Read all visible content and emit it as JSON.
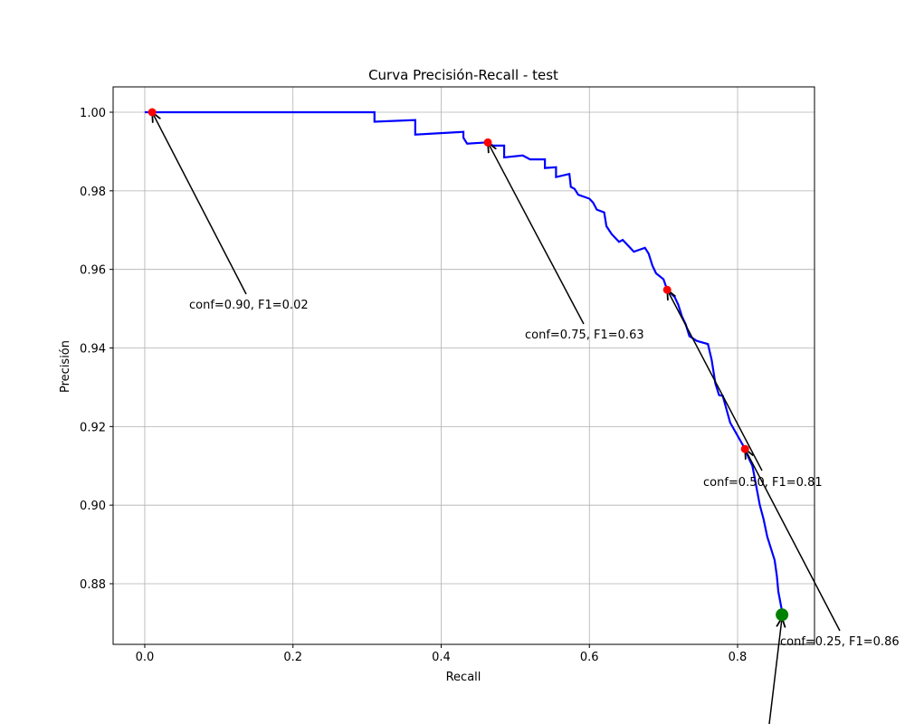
{
  "chart_data": {
    "type": "line",
    "title": "Curva Precisión-Recall - test",
    "x_label": "Recall",
    "y_label": "Precisión",
    "xlim": [
      -0.0427,
      0.9038
    ],
    "ylim": [
      0.86457,
      1.00645
    ],
    "xticks": [
      {
        "value": 0,
        "label": "0.0"
      },
      {
        "value": 0.2,
        "label": "0.2"
      },
      {
        "value": 0.4,
        "label": "0.4"
      },
      {
        "value": 0.6,
        "label": "0.6"
      },
      {
        "value": 0.8,
        "label": "0.8"
      }
    ],
    "yticks": [
      0.88,
      {
        "value": 0.9,
        "label": "0.90"
      },
      0.92,
      0.94,
      0.96,
      0.98,
      {
        "value": 1.0,
        "label": "1.00"
      }
    ],
    "grid": true,
    "line": {
      "color": "#0000ff",
      "x": [
        0,
        0.31,
        0.31,
        0.365,
        0.365,
        0.43,
        0.43,
        0.435,
        0.46,
        0.47,
        0.485,
        0.485,
        0.51,
        0.52,
        0.54,
        0.54,
        0.555,
        0.555,
        0.573,
        0.575,
        0.58,
        0.585,
        0.6,
        0.605,
        0.61,
        0.62,
        0.623,
        0.63,
        0.64,
        0.645,
        0.655,
        0.66,
        0.675,
        0.68,
        0.685,
        0.69,
        0.7,
        0.705,
        0.715,
        0.72,
        0.725,
        0.73,
        0.735,
        0.745,
        0.76,
        0.765,
        0.77,
        0.775,
        0.78,
        0.79,
        0.805,
        0.81,
        0.815,
        0.82,
        0.825,
        0.83,
        0.835,
        0.84,
        0.845,
        0.85,
        0.853,
        0.855,
        0.86
      ],
      "y": [
        1.0,
        1.0,
        0.9976,
        0.998,
        0.9943,
        0.995,
        0.9935,
        0.992,
        0.9923,
        0.9915,
        0.9915,
        0.9885,
        0.989,
        0.988,
        0.988,
        0.9858,
        0.986,
        0.9835,
        0.9843,
        0.981,
        0.9805,
        0.979,
        0.978,
        0.977,
        0.9752,
        0.9745,
        0.971,
        0.969,
        0.967,
        0.9675,
        0.9655,
        0.9645,
        0.9655,
        0.964,
        0.961,
        0.959,
        0.9575,
        0.9548,
        0.953,
        0.951,
        0.948,
        0.946,
        0.943,
        0.9418,
        0.941,
        0.937,
        0.931,
        0.928,
        0.9278,
        0.921,
        0.916,
        0.9143,
        0.912,
        0.91,
        0.905,
        0.9,
        0.8965,
        0.892,
        0.889,
        0.886,
        0.882,
        0.878,
        0.873
      ]
    },
    "points": {
      "color": "#ff0000",
      "x": [
        0.01,
        0.463,
        0.705,
        0.81
      ],
      "y": [
        1.0,
        0.9923,
        0.9548,
        0.9143
      ]
    },
    "best": {
      "color": "#008000",
      "x": [
        0.86
      ],
      "y": [
        0.8721
      ]
    },
    "annotations": [
      "conf=0.90, F1=0.02",
      "conf=0.75, F1=0.63",
      "conf=0.50, F1=0.81",
      "conf=0.25, F1=0.86"
    ]
  }
}
